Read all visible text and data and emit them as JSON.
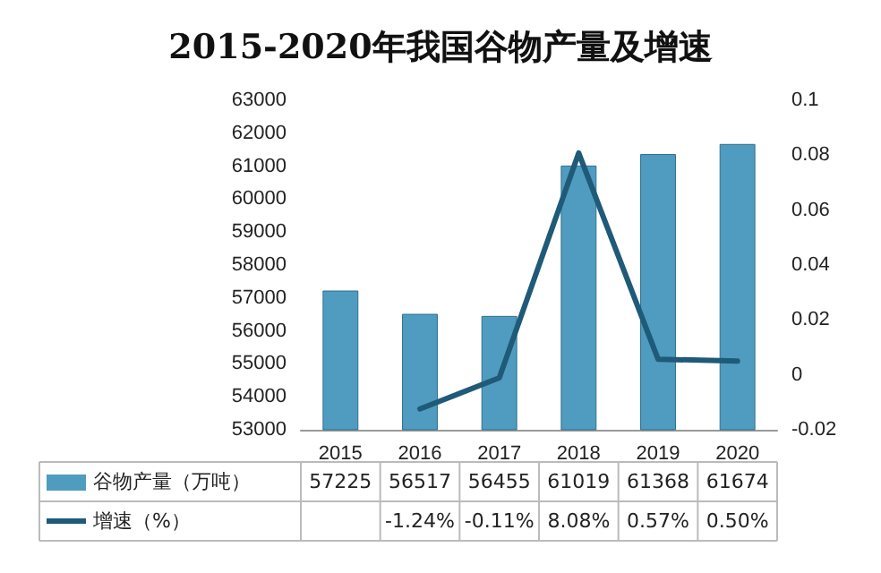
{
  "chart_data": {
    "type": "bar",
    "title": "2015-2020年我国谷物产量及增速",
    "categories": [
      "2015",
      "2016",
      "2017",
      "2018",
      "2019",
      "2020"
    ],
    "series": [
      {
        "name": "谷物产量（万吨）",
        "color": "#4f9cc0",
        "values": [
          57225,
          56517,
          56455,
          61019,
          61368,
          61674
        ]
      },
      {
        "name": "增速（%）",
        "type": "line",
        "axis": "y2",
        "color": "#1f5a78",
        "values": [
          null,
          -0.0124,
          -0.0011,
          0.0808,
          0.0057,
          0.005
        ],
        "value_labels": [
          null,
          "-1.24%",
          "-0.11%",
          "8.08%",
          "0.57%",
          "0.50%"
        ]
      }
    ],
    "ylim": [
      53000,
      63000
    ],
    "yticks": [
      53000,
      54000,
      55000,
      56000,
      57000,
      58000,
      59000,
      60000,
      61000,
      62000,
      63000
    ],
    "y2lim": [
      -0.02,
      0.1
    ],
    "y2ticks": [
      -0.02,
      0,
      0.02,
      0.04,
      0.06,
      0.08,
      0.1
    ],
    "data_labels": true,
    "grid": false,
    "legend": "bottom",
    "marker": "none"
  }
}
